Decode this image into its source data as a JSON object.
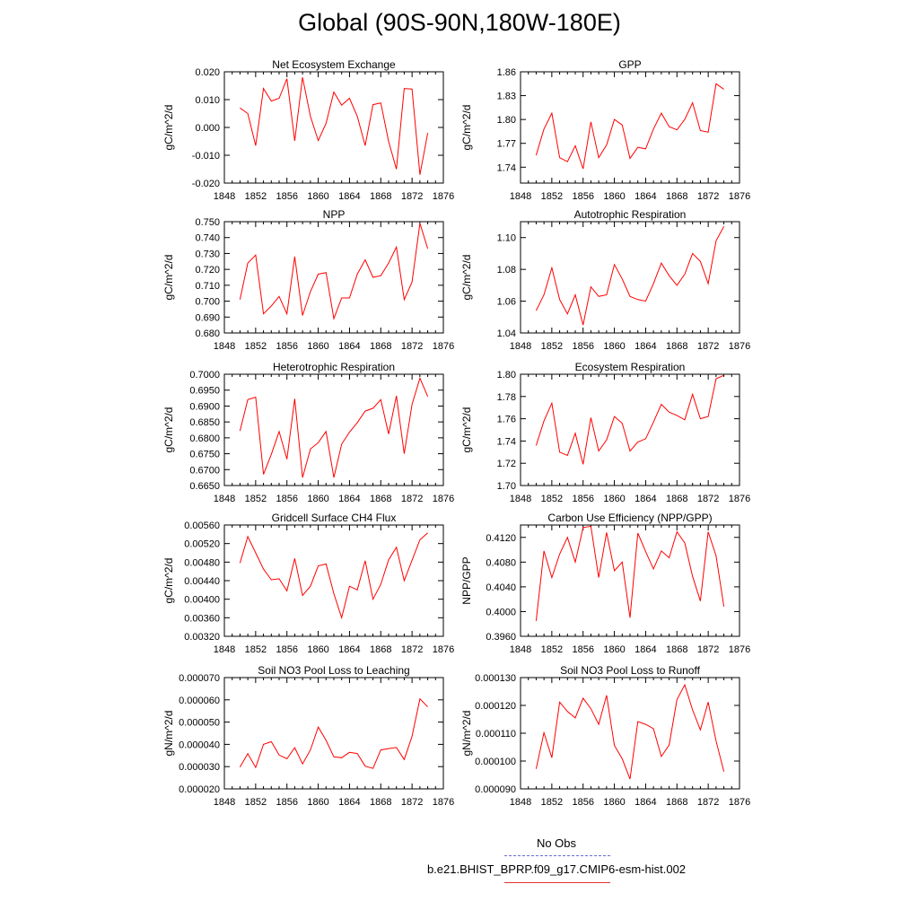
{
  "title": "Global (90S-90N,180W-180E)",
  "legend": {
    "obs_label": "No Obs",
    "obs_color": "#6a6ad8",
    "model_label": "b.e21.BHIST_BPRP.f09_g17.CMIP6-esm-hist.002",
    "model_color": "#ff0000"
  },
  "chart_data": [
    {
      "type": "line",
      "title": "Net Ecosystem Exchange",
      "ylabel": "gC/m^2/d",
      "xlim": [
        1848,
        1876
      ],
      "x_ticks": [
        "1848",
        "1852",
        "1856",
        "1860",
        "1864",
        "1868",
        "1872",
        "1876"
      ],
      "ylim": [
        -0.02,
        0.02
      ],
      "y_ticks": [
        "0.020",
        "0.010",
        "0.000",
        "-0.010",
        "-0.020"
      ],
      "y_tick_values": [
        0.02,
        0.01,
        0.0,
        -0.01,
        -0.02
      ],
      "x": [
        1850,
        1851,
        1852,
        1853,
        1854,
        1855,
        1856,
        1857,
        1858,
        1859,
        1860,
        1861,
        1862,
        1863,
        1864,
        1865,
        1866,
        1867,
        1868,
        1869,
        1870,
        1871,
        1872,
        1873,
        1874
      ],
      "series": [
        {
          "values": [
            0.007,
            0.005,
            -0.0065,
            0.014,
            0.0095,
            0.0105,
            0.0175,
            -0.0048,
            0.018,
            0.004,
            -0.0047,
            0.0015,
            0.0127,
            0.008,
            0.0105,
            0.004,
            -0.0065,
            0.0082,
            0.0088,
            -0.005,
            -0.015,
            0.014,
            0.0138,
            -0.017,
            -0.002
          ]
        }
      ]
    },
    {
      "type": "line",
      "title": "GPP",
      "ylabel": "gC/m^2/d",
      "xlim": [
        1848,
        1876
      ],
      "x_ticks": [
        "1848",
        "1852",
        "1856",
        "1860",
        "1864",
        "1868",
        "1872",
        "1876"
      ],
      "ylim": [
        1.72,
        1.86
      ],
      "y_ticks": [
        "1.86",
        "1.83",
        "1.80",
        "1.77",
        "1.74"
      ],
      "y_tick_values": [
        1.86,
        1.83,
        1.8,
        1.77,
        1.74
      ],
      "x": [
        1850,
        1851,
        1852,
        1853,
        1854,
        1855,
        1856,
        1857,
        1858,
        1859,
        1860,
        1861,
        1862,
        1863,
        1864,
        1865,
        1866,
        1867,
        1868,
        1869,
        1870,
        1871,
        1872,
        1873,
        1874
      ],
      "series": [
        {
          "values": [
            1.755,
            1.788,
            1.808,
            1.752,
            1.747,
            1.767,
            1.738,
            1.797,
            1.752,
            1.768,
            1.8,
            1.793,
            1.751,
            1.765,
            1.763,
            1.788,
            1.808,
            1.791,
            1.787,
            1.8,
            1.821,
            1.786,
            1.784,
            1.845,
            1.838
          ]
        }
      ]
    },
    {
      "type": "line",
      "title": "NPP",
      "ylabel": "gC/m^2/d",
      "xlim": [
        1848,
        1876
      ],
      "x_ticks": [
        "1848",
        "1852",
        "1856",
        "1860",
        "1864",
        "1868",
        "1872",
        "1876"
      ],
      "ylim": [
        0.68,
        0.75
      ],
      "y_ticks": [
        "0.750",
        "0.740",
        "0.730",
        "0.720",
        "0.710",
        "0.700",
        "0.690",
        "0.680"
      ],
      "y_tick_values": [
        0.75,
        0.74,
        0.73,
        0.72,
        0.71,
        0.7,
        0.69,
        0.68
      ],
      "x": [
        1850,
        1851,
        1852,
        1853,
        1854,
        1855,
        1856,
        1857,
        1858,
        1859,
        1860,
        1861,
        1862,
        1863,
        1864,
        1865,
        1866,
        1867,
        1868,
        1869,
        1870,
        1871,
        1872,
        1873,
        1874
      ],
      "series": [
        {
          "values": [
            0.701,
            0.724,
            0.729,
            0.692,
            0.697,
            0.703,
            0.692,
            0.728,
            0.691,
            0.706,
            0.717,
            0.718,
            0.689,
            0.702,
            0.702,
            0.717,
            0.726,
            0.715,
            0.716,
            0.724,
            0.734,
            0.701,
            0.712,
            0.749,
            0.733
          ]
        }
      ]
    },
    {
      "type": "line",
      "title": "Autotrophic Respiration",
      "ylabel": "gC/m^2/d",
      "xlim": [
        1848,
        1876
      ],
      "x_ticks": [
        "1848",
        "1852",
        "1856",
        "1860",
        "1864",
        "1868",
        "1872",
        "1876"
      ],
      "ylim": [
        1.04,
        1.11
      ],
      "y_ticks": [
        "1.10",
        "1.08",
        "1.06",
        "1.04"
      ],
      "y_tick_values": [
        1.1,
        1.08,
        1.06,
        1.04
      ],
      "x": [
        1850,
        1851,
        1852,
        1853,
        1854,
        1855,
        1856,
        1857,
        1858,
        1859,
        1860,
        1861,
        1862,
        1863,
        1864,
        1865,
        1866,
        1867,
        1868,
        1869,
        1870,
        1871,
        1872,
        1873,
        1874
      ],
      "series": [
        {
          "values": [
            1.054,
            1.064,
            1.081,
            1.061,
            1.052,
            1.064,
            1.045,
            1.069,
            1.063,
            1.064,
            1.083,
            1.074,
            1.063,
            1.061,
            1.06,
            1.071,
            1.084,
            1.076,
            1.07,
            1.077,
            1.09,
            1.085,
            1.071,
            1.098,
            1.107
          ]
        }
      ]
    },
    {
      "type": "line",
      "title": "Heterotrophic Respiration",
      "ylabel": "gC/m^2/d",
      "xlim": [
        1848,
        1876
      ],
      "x_ticks": [
        "1848",
        "1852",
        "1856",
        "1860",
        "1864",
        "1868",
        "1872",
        "1876"
      ],
      "ylim": [
        0.665,
        0.7
      ],
      "y_ticks": [
        "0.7000",
        "0.6950",
        "0.6900",
        "0.6850",
        "0.6800",
        "0.6750",
        "0.6700",
        "0.6650"
      ],
      "y_tick_values": [
        0.7,
        0.695,
        0.69,
        0.685,
        0.68,
        0.675,
        0.67,
        0.665
      ],
      "x": [
        1850,
        1851,
        1852,
        1853,
        1854,
        1855,
        1856,
        1857,
        1858,
        1859,
        1860,
        1861,
        1862,
        1863,
        1864,
        1865,
        1866,
        1867,
        1868,
        1869,
        1870,
        1871,
        1872,
        1873,
        1874
      ],
      "series": [
        {
          "values": [
            0.6822,
            0.692,
            0.6928,
            0.6685,
            0.6748,
            0.682,
            0.6733,
            0.6923,
            0.6675,
            0.6765,
            0.6785,
            0.682,
            0.6675,
            0.678,
            0.6818,
            0.6848,
            0.6884,
            0.6893,
            0.692,
            0.6812,
            0.6932,
            0.675,
            0.6905,
            0.6988,
            0.693
          ]
        }
      ]
    },
    {
      "type": "line",
      "title": "Ecosystem Respiration",
      "ylabel": "gC/m^2/d",
      "xlim": [
        1848,
        1876
      ],
      "x_ticks": [
        "1848",
        "1852",
        "1856",
        "1860",
        "1864",
        "1868",
        "1872",
        "1876"
      ],
      "ylim": [
        1.7,
        1.8
      ],
      "y_ticks": [
        "1.80",
        "1.78",
        "1.76",
        "1.74",
        "1.72",
        "1.70"
      ],
      "y_tick_values": [
        1.8,
        1.78,
        1.76,
        1.74,
        1.72,
        1.7
      ],
      "x": [
        1850,
        1851,
        1852,
        1853,
        1854,
        1855,
        1856,
        1857,
        1858,
        1859,
        1860,
        1861,
        1862,
        1863,
        1864,
        1865,
        1866,
        1867,
        1868,
        1869,
        1870,
        1871,
        1872,
        1873,
        1874
      ],
      "series": [
        {
          "values": [
            1.736,
            1.758,
            1.774,
            1.73,
            1.727,
            1.747,
            1.719,
            1.761,
            1.731,
            1.741,
            1.762,
            1.756,
            1.731,
            1.739,
            1.742,
            1.757,
            1.773,
            1.766,
            1.763,
            1.759,
            1.782,
            1.76,
            1.762,
            1.796,
            1.799
          ]
        }
      ]
    },
    {
      "type": "line",
      "title": "Gridcell Surface CH4 Flux",
      "ylabel": "gC/m^2/d",
      "xlim": [
        1848,
        1876
      ],
      "x_ticks": [
        "1848",
        "1852",
        "1856",
        "1860",
        "1864",
        "1868",
        "1872",
        "1876"
      ],
      "ylim": [
        0.0032,
        0.0056
      ],
      "y_ticks": [
        "0.00560",
        "0.00520",
        "0.00480",
        "0.00440",
        "0.00400",
        "0.00360",
        "0.00320"
      ],
      "y_tick_values": [
        0.0056,
        0.0052,
        0.0048,
        0.0044,
        0.004,
        0.0036,
        0.0032
      ],
      "x": [
        1850,
        1851,
        1852,
        1853,
        1854,
        1855,
        1856,
        1857,
        1858,
        1859,
        1860,
        1861,
        1862,
        1863,
        1864,
        1865,
        1866,
        1867,
        1868,
        1869,
        1870,
        1871,
        1872,
        1873,
        1874
      ],
      "series": [
        {
          "values": [
            0.00478,
            0.00535,
            0.005,
            0.00465,
            0.00442,
            0.00444,
            0.00418,
            0.00488,
            0.00408,
            0.00428,
            0.00472,
            0.00476,
            0.00412,
            0.0036,
            0.00428,
            0.0042,
            0.00483,
            0.004,
            0.00432,
            0.00485,
            0.00512,
            0.0044,
            0.00484,
            0.00528,
            0.00543
          ]
        }
      ]
    },
    {
      "type": "line",
      "title": "Carbon Use Efficiency (NPP/GPP)",
      "ylabel": "NPP/GPP",
      "xlim": [
        1848,
        1876
      ],
      "x_ticks": [
        "1848",
        "1852",
        "1856",
        "1860",
        "1864",
        "1868",
        "1872",
        "1876"
      ],
      "ylim": [
        0.396,
        0.414
      ],
      "y_ticks": [
        "0.4120",
        "0.4080",
        "0.4040",
        "0.4000",
        "0.3960"
      ],
      "y_tick_values": [
        0.412,
        0.408,
        0.404,
        0.4,
        0.396
      ],
      "x": [
        1850,
        1851,
        1852,
        1853,
        1854,
        1855,
        1856,
        1857,
        1858,
        1859,
        1860,
        1861,
        1862,
        1863,
        1864,
        1865,
        1866,
        1867,
        1868,
        1869,
        1870,
        1871,
        1872,
        1873,
        1874
      ],
      "series": [
        {
          "values": [
            0.3985,
            0.4098,
            0.4055,
            0.4093,
            0.412,
            0.408,
            0.4136,
            0.4138,
            0.4055,
            0.4128,
            0.4066,
            0.408,
            0.399,
            0.4127,
            0.4097,
            0.4069,
            0.4098,
            0.4087,
            0.4129,
            0.4111,
            0.4057,
            0.4017,
            0.4129,
            0.409,
            0.4008
          ]
        }
      ]
    },
    {
      "type": "line",
      "title": "Soil NO3 Pool Loss to Leaching",
      "ylabel": "gN/m^2/d",
      "xlim": [
        1848,
        1876
      ],
      "x_ticks": [
        "1848",
        "1852",
        "1856",
        "1860",
        "1864",
        "1868",
        "1872",
        "1876"
      ],
      "ylim": [
        2e-05,
        7e-05
      ],
      "y_ticks": [
        "0.000070",
        "0.000060",
        "0.000050",
        "0.000040",
        "0.000030",
        "0.000020"
      ],
      "y_tick_values": [
        7e-05,
        6e-05,
        5e-05,
        4e-05,
        3e-05,
        2e-05
      ],
      "x": [
        1850,
        1851,
        1852,
        1853,
        1854,
        1855,
        1856,
        1857,
        1858,
        1859,
        1860,
        1861,
        1862,
        1863,
        1864,
        1865,
        1866,
        1867,
        1868,
        1869,
        1870,
        1871,
        1872,
        1873,
        1874
      ],
      "series": [
        {
          "values": [
            2.98e-05,
            3.58e-05,
            2.96e-05,
            4e-05,
            4.12e-05,
            3.52e-05,
            3.35e-05,
            3.85e-05,
            3.12e-05,
            3.75e-05,
            4.78e-05,
            4.18e-05,
            3.44e-05,
            3.4e-05,
            3.64e-05,
            3.59e-05,
            3.02e-05,
            2.92e-05,
            3.75e-05,
            3.81e-05,
            3.86e-05,
            3.32e-05,
            4.36e-05,
            6.05e-05,
            5.68e-05
          ]
        }
      ]
    },
    {
      "type": "line",
      "title": "Soil NO3 Pool Loss to Runoff",
      "ylabel": "gN/m^2/d",
      "xlim": [
        1848,
        1876
      ],
      "x_ticks": [
        "1848",
        "1852",
        "1856",
        "1860",
        "1864",
        "1868",
        "1872",
        "1876"
      ],
      "ylim": [
        9e-05,
        0.00013
      ],
      "y_ticks": [
        "0.000130",
        "0.000120",
        "0.000110",
        "0.000100",
        "0.000090"
      ],
      "y_tick_values": [
        0.00013,
        0.00012,
        0.00011,
        0.0001,
        9e-05
      ],
      "x": [
        1850,
        1851,
        1852,
        1853,
        1854,
        1855,
        1856,
        1857,
        1858,
        1859,
        1860,
        1861,
        1862,
        1863,
        1864,
        1865,
        1866,
        1867,
        1868,
        1869,
        1870,
        1871,
        1872,
        1873,
        1874
      ],
      "series": [
        {
          "values": [
            9.72e-05,
            0.0001102,
            0.0001012,
            0.0001212,
            0.0001178,
            0.0001155,
            0.0001226,
            0.0001188,
            0.0001132,
            0.0001236,
            0.0001056,
            0.0001008,
            9.35e-05,
            0.0001142,
            0.0001132,
            0.0001116,
            0.0001016,
            0.0001058,
            0.0001221,
            0.0001274,
            0.0001184,
            0.0001112,
            0.0001212,
            0.0001072,
            9.62e-05
          ]
        }
      ]
    }
  ]
}
